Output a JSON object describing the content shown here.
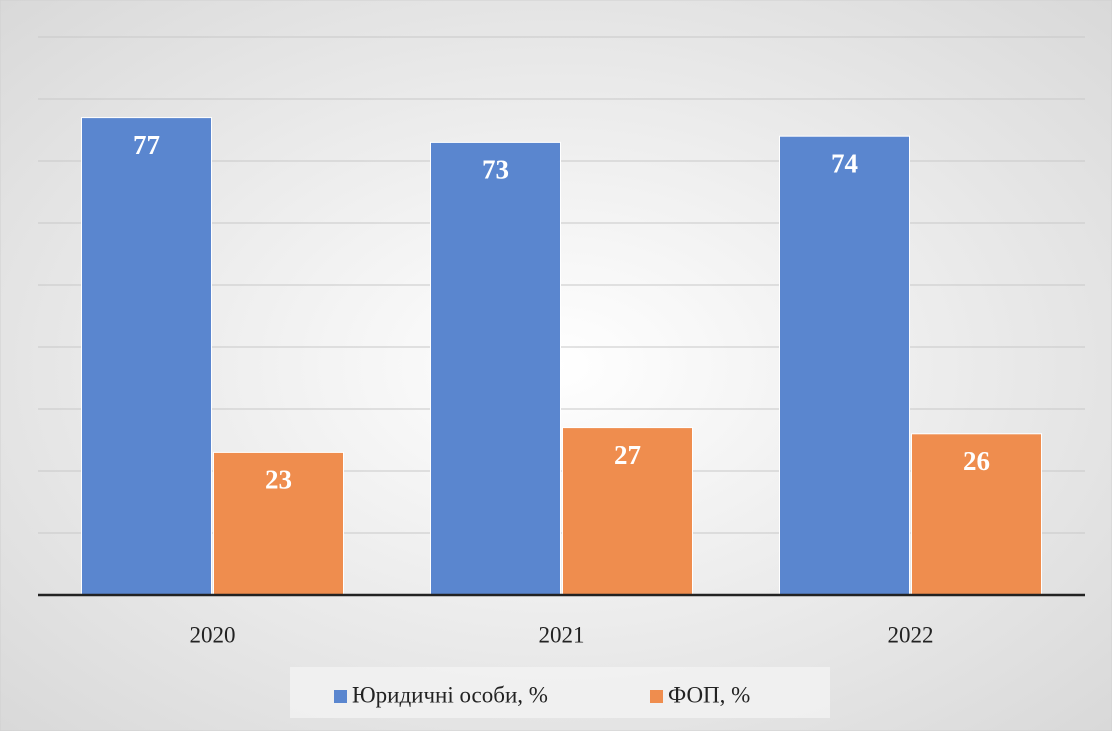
{
  "chart_data": {
    "type": "bar",
    "categories": [
      "2020",
      "2021",
      "2022"
    ],
    "series": [
      {
        "name": "Юридичні особи, %",
        "color": "#5a86cf",
        "values": [
          77,
          73,
          74
        ]
      },
      {
        "name": "ФОП, %",
        "color": "#ef8d4e",
        "values": [
          23,
          27,
          26
        ]
      }
    ],
    "ylim": [
      0,
      90
    ],
    "yticks": [
      10,
      20,
      30,
      40,
      50,
      60,
      70,
      80,
      90
    ],
    "grid": true,
    "legend": "bottom"
  }
}
